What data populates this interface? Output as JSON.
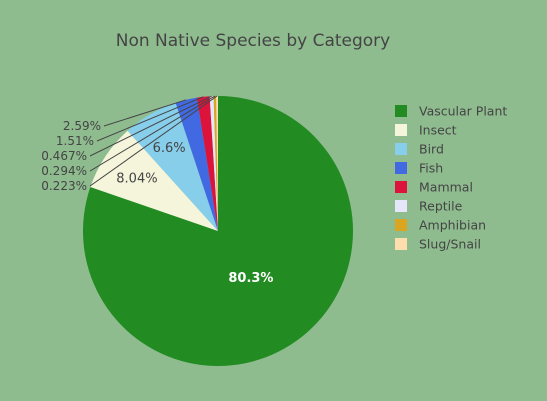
{
  "chart_data": {
    "type": "pie",
    "title": "Non Native Species by Category",
    "labels": [
      "Vascular Plant",
      "Insect",
      "Bird",
      "Fish",
      "Mammal",
      "Reptile",
      "Amphibian",
      "Slug/Snail"
    ],
    "values": [
      80.3,
      8.04,
      6.6,
      2.59,
      1.51,
      0.467,
      0.294,
      0.223
    ],
    "value_labels": [
      "80.3%",
      "8.04%",
      "6.6%",
      "2.59%",
      "1.51%",
      "0.467%",
      "0.294%",
      "0.223%"
    ],
    "colors": [
      "#228b22",
      "#f5f5dc",
      "#87ceeb",
      "#4169e1",
      "#dc143c",
      "#e6e6fa",
      "#daa520",
      "#ffdead"
    ],
    "legend_position": "right",
    "direction": "clockwise",
    "start": "top"
  }
}
